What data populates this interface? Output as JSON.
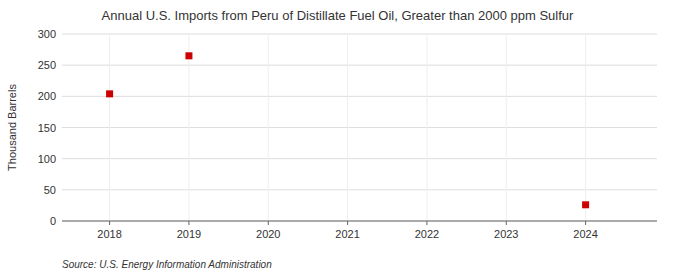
{
  "chart_data": {
    "type": "scatter",
    "title": "Annual U.S. Imports from Peru of Distillate Fuel Oil, Greater than 2000 ppm Sulfur",
    "y_label": "Thousand Barrels",
    "source": "Source: U.S. Energy Information Administration",
    "x": [
      2018,
      2019,
      2024
    ],
    "values": [
      204,
      265,
      26
    ],
    "color": "#cc0000",
    "marker": "square",
    "xlim": [
      2017.4,
      2024.9
    ],
    "ylim": [
      0,
      300
    ],
    "xticks": [
      2018,
      2019,
      2020,
      2021,
      2022,
      2023,
      2024
    ],
    "yticks": [
      0,
      50,
      100,
      150,
      200,
      250,
      300
    ],
    "grid": true
  }
}
